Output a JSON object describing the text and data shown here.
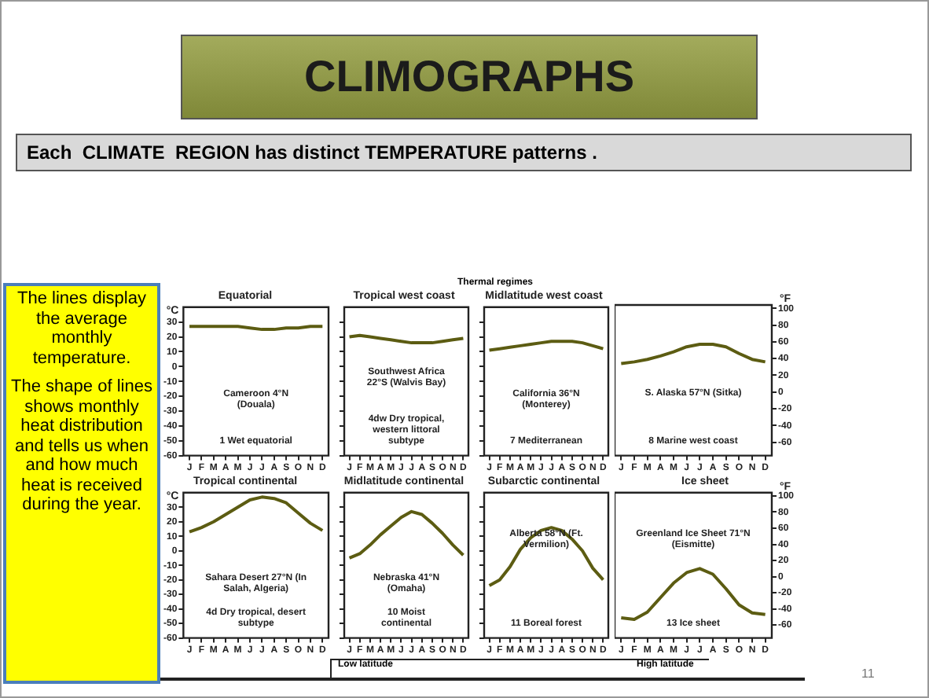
{
  "chart_data": [
    {
      "type": "other",
      "title": "CLIMOGRAPHS",
      "subtitle": "Each  CLIMATE  REGION has distinct TEMPERATURE patterns .",
      "annotations": [
        "The lines display the average monthly temperature.",
        "The shape of lines shows monthly heat distribution and tells us when and how much heat is received during the year.",
        "Thermal regimes",
        "Low latitude",
        "High latitude",
        "11"
      ]
    },
    {
      "type": "line",
      "title": "Equatorial",
      "ylabel": "°C",
      "categories": [
        "J",
        "F",
        "M",
        "A",
        "M",
        "J",
        "J",
        "A",
        "S",
        "O",
        "N",
        "D"
      ],
      "values": [
        27,
        27,
        27,
        27,
        27,
        26,
        25,
        25,
        26,
        26,
        27,
        27
      ],
      "color": "#5c5c12",
      "ylim": [
        -60,
        40
      ],
      "yticks": [
        -60,
        -50,
        -40,
        -30,
        -20,
        -10,
        0,
        10,
        20,
        30
      ],
      "annotations": [
        "Cameroon 4°N (Douala)",
        "1 Wet equatorial"
      ]
    },
    {
      "type": "line",
      "title": "Tropical west coast",
      "categories": [
        "J",
        "F",
        "M",
        "A",
        "M",
        "J",
        "J",
        "A",
        "S",
        "O",
        "N",
        "D"
      ],
      "values": [
        20,
        21,
        20,
        19,
        18,
        17,
        16,
        16,
        16,
        17,
        18,
        19
      ],
      "color": "#5c5c12",
      "ylim": [
        -60,
        40
      ],
      "yticks": [
        -60,
        -50,
        -40,
        -30,
        -20,
        -10,
        0,
        10,
        20,
        30
      ],
      "tick_labels": "x",
      "annotations": [
        "Southwest Africa 22°S (Walvis Bay)",
        "4dw Dry tropical, western littoral subtype"
      ]
    },
    {
      "type": "line",
      "title": "Midlatitude west coast",
      "categories": [
        "J",
        "F",
        "M",
        "A",
        "M",
        "J",
        "J",
        "A",
        "S",
        "O",
        "N",
        "D"
      ],
      "values": [
        11,
        12,
        13,
        14,
        15,
        16,
        17,
        17,
        17,
        16,
        14,
        12
      ],
      "color": "#5c5c12",
      "ylim": [
        -60,
        40
      ],
      "yticks": [
        -60,
        -50,
        -40,
        -30,
        -20,
        -10,
        0,
        10,
        20,
        30
      ],
      "tick_labels": "x",
      "annotations": [
        "California 36°N (Monterey)",
        "7 Mediterranean"
      ]
    },
    {
      "type": "line",
      "title": null,
      "y2label": "°F",
      "categories": [
        "J",
        "F",
        "M",
        "A",
        "M",
        "J",
        "J",
        "A",
        "S",
        "O",
        "N",
        "D"
      ],
      "series": [
        {
          "color": "#5c5c12",
          "axis": "y2",
          "values": [
            34,
            36,
            39,
            43,
            48,
            54,
            57,
            57,
            54,
            46,
            39,
            36
          ]
        }
      ],
      "y2lim": [
        -76,
        104
      ],
      "y2ticks": [
        -60,
        -40,
        -20,
        0,
        20,
        40,
        60,
        80,
        100
      ],
      "annotations": [
        "S. Alaska 57°N (Sitka)",
        "8 Marine west coast"
      ]
    },
    {
      "type": "line",
      "title": "Tropical continental",
      "ylabel": "°C",
      "categories": [
        "J",
        "F",
        "M",
        "A",
        "M",
        "J",
        "J",
        "A",
        "S",
        "O",
        "N",
        "D"
      ],
      "values": [
        13,
        16,
        20,
        25,
        30,
        35,
        37,
        36,
        33,
        26,
        19,
        14
      ],
      "color": "#5c5c12",
      "ylim": [
        -60,
        40
      ],
      "yticks": [
        -60,
        -50,
        -40,
        -30,
        -20,
        -10,
        0,
        10,
        20,
        30
      ],
      "annotations": [
        "Sahara Desert 27°N (In Salah, Algeria)",
        "4d Dry tropical, desert subtype"
      ]
    },
    {
      "type": "line",
      "title": "Midlatitude continental",
      "categories": [
        "J",
        "F",
        "M",
        "A",
        "M",
        "J",
        "J",
        "A",
        "S",
        "O",
        "N",
        "D"
      ],
      "values": [
        -5,
        -2,
        4,
        11,
        17,
        23,
        27,
        25,
        19,
        12,
        4,
        -3
      ],
      "color": "#5c5c12",
      "ylim": [
        -60,
        40
      ],
      "yticks": [
        -60,
        -50,
        -40,
        -30,
        -20,
        -10,
        0,
        10,
        20,
        30
      ],
      "tick_labels": "x",
      "annotations": [
        "Nebraska 41°N (Omaha)",
        "10 Moist continental"
      ]
    },
    {
      "type": "line",
      "title": "Subarctic continental",
      "categories": [
        "J",
        "F",
        "M",
        "A",
        "M",
        "J",
        "J",
        "A",
        "S",
        "O",
        "N",
        "D"
      ],
      "values": [
        -24,
        -20,
        -11,
        1,
        9,
        14,
        16,
        14,
        8,
        0,
        -12,
        -20
      ],
      "color": "#5c5c12",
      "ylim": [
        -60,
        40
      ],
      "yticks": [
        -60,
        -50,
        -40,
        -30,
        -20,
        -10,
        0,
        10,
        20,
        30
      ],
      "tick_labels": "x",
      "annotations": [
        "Alberta 58°N (Ft. Vermilion)",
        "11 Boreal forest"
      ]
    },
    {
      "type": "line",
      "title": "Ice sheet",
      "y2label": "°F",
      "categories": [
        "J",
        "F",
        "M",
        "A",
        "M",
        "J",
        "J",
        "A",
        "S",
        "O",
        "N",
        "D"
      ],
      "series": [
        {
          "color": "#5c5c12",
          "axis": "y2",
          "values": [
            -51,
            -53,
            -44,
            -26,
            -8,
            5,
            10,
            3,
            -15,
            -35,
            -45,
            -47
          ]
        }
      ],
      "y2lim": [
        -76,
        104
      ],
      "y2ticks": [
        -60,
        -40,
        -20,
        0,
        20,
        40,
        60,
        80,
        100
      ],
      "annotations": [
        "Greenland Ice Sheet 71°N (Eismitte)",
        "13 Ice sheet"
      ]
    }
  ]
}
